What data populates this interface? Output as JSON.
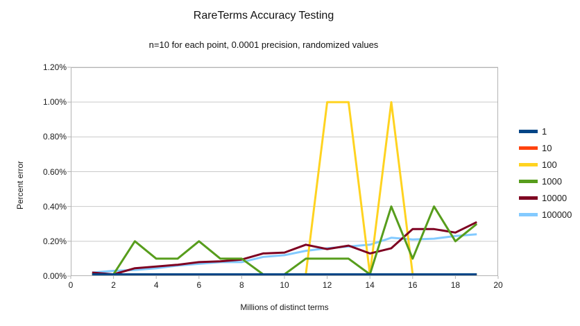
{
  "title": "RareTerms Accuracy Testing",
  "subtitle": "n=10 for each point, 0.0001 precision, randomized values",
  "axes": {
    "y_title": "Percent error",
    "x_title": "Millions of distinct terms",
    "y_tick_labels": [
      "1.20%",
      "1.00%",
      "0.80%",
      "0.60%",
      "0.40%",
      "0.20%",
      "0.00%"
    ],
    "x_tick_labels": [
      "0",
      "2",
      "4",
      "6",
      "8",
      "10",
      "12",
      "14",
      "16",
      "18",
      "20"
    ]
  },
  "style": {
    "grid_color": "#c9c9c9",
    "axis_color": "#b3b3b3",
    "background": "#ffffff"
  },
  "chart_data": {
    "type": "line",
    "title": "RareTerms Accuracy Testing",
    "subtitle": "n=10 for each point, 0.0001 precision, randomized values",
    "xlabel": "Millions of distinct terms",
    "ylabel": "Percent error",
    "xlim": [
      0,
      20
    ],
    "ylim_percent": [
      0.0,
      1.2
    ],
    "grid": true,
    "legend_position": "right",
    "x": [
      1,
      2,
      3,
      4,
      5,
      6,
      7,
      8,
      9,
      10,
      11,
      12,
      13,
      14,
      15,
      16,
      17,
      18,
      19
    ],
    "series": [
      {
        "name": "1",
        "color": "#004586",
        "values_percent": [
          0.01,
          0,
          0,
          0,
          0,
          0,
          0,
          0,
          0,
          0,
          0,
          0,
          0,
          0,
          0,
          0,
          0,
          0,
          0
        ]
      },
      {
        "name": "10",
        "color": "#ff420e",
        "values_percent": [
          0,
          0,
          0,
          0,
          0,
          0,
          0,
          0,
          0,
          0,
          0,
          0,
          0,
          0,
          0,
          0,
          0,
          0,
          0
        ]
      },
      {
        "name": "100",
        "color": "#ffd320",
        "values_percent": [
          0,
          0,
          0,
          0,
          0,
          0,
          0,
          0,
          0,
          0,
          0,
          1.0,
          1.0,
          0,
          1.0,
          0,
          0,
          0,
          0
        ]
      },
      {
        "name": "1000",
        "color": "#579d1c",
        "values_percent": [
          0.01,
          0,
          0.2,
          0.1,
          0.1,
          0.2,
          0.1,
          0.1,
          0,
          0,
          0.1,
          0.1,
          0.1,
          0,
          0.4,
          0.1,
          0.4,
          0.2,
          0.3
        ]
      },
      {
        "name": "10000",
        "color": "#7e0021",
        "values_percent": [
          0.02,
          0.01,
          0.045,
          0.055,
          0.065,
          0.08,
          0.085,
          0.095,
          0.13,
          0.135,
          0.18,
          0.155,
          0.175,
          0.13,
          0.16,
          0.27,
          0.27,
          0.25,
          0.31
        ]
      },
      {
        "name": "100000",
        "color": "#83caff",
        "values_percent": [
          0.02,
          0.03,
          0.035,
          0.045,
          0.06,
          0.07,
          0.08,
          0.08,
          0.11,
          0.12,
          0.145,
          0.16,
          0.17,
          0.18,
          0.22,
          0.21,
          0.215,
          0.23,
          0.24
        ]
      }
    ],
    "draw_order": [
      1,
      5,
      2,
      4,
      3,
      0
    ]
  }
}
